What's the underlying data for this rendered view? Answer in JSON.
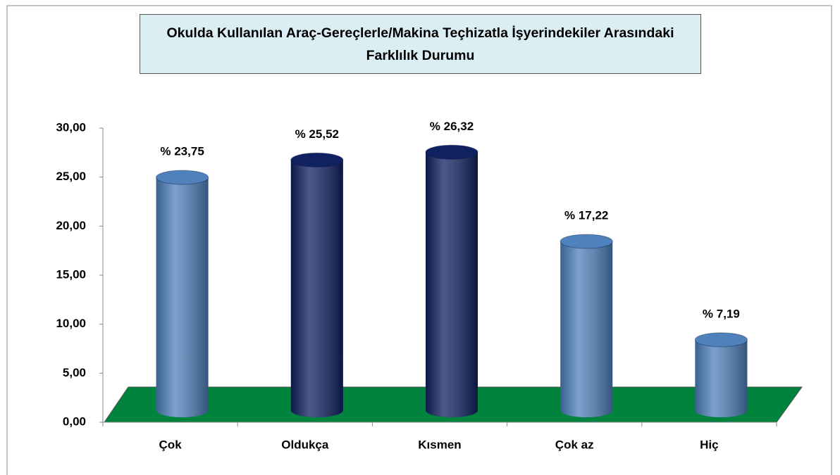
{
  "chart_data": {
    "type": "bar",
    "title": "Okulda Kullanılan Araç-Gereçlerle/Makina Teçhizatla İşyerindekiler Arasındaki Farklılık Durumu",
    "categories": [
      "Çok",
      "Oldukça",
      "Kısmen",
      "Çok az",
      "Hiç"
    ],
    "values": [
      23.75,
      25.52,
      26.32,
      17.22,
      7.19
    ],
    "value_labels": [
      "% 23,75",
      "% 25,52",
      "% 26,32",
      "% 17,22",
      "% 7,19"
    ],
    "colors": [
      "#4f81bd",
      "#0f2161",
      "#0f2161",
      "#4f81bd",
      "#4f81bd"
    ],
    "floor_color": "#00843d",
    "ylim": [
      0,
      30
    ],
    "yticks": [
      {
        "value": 0,
        "label": "0,00"
      },
      {
        "value": 5,
        "label": "5,00"
      },
      {
        "value": 10,
        "label": "10,00"
      },
      {
        "value": 15,
        "label": "15,00"
      },
      {
        "value": 20,
        "label": "20,00"
      },
      {
        "value": 25,
        "label": "25,00"
      },
      {
        "value": 30,
        "label": "30,00"
      }
    ]
  }
}
